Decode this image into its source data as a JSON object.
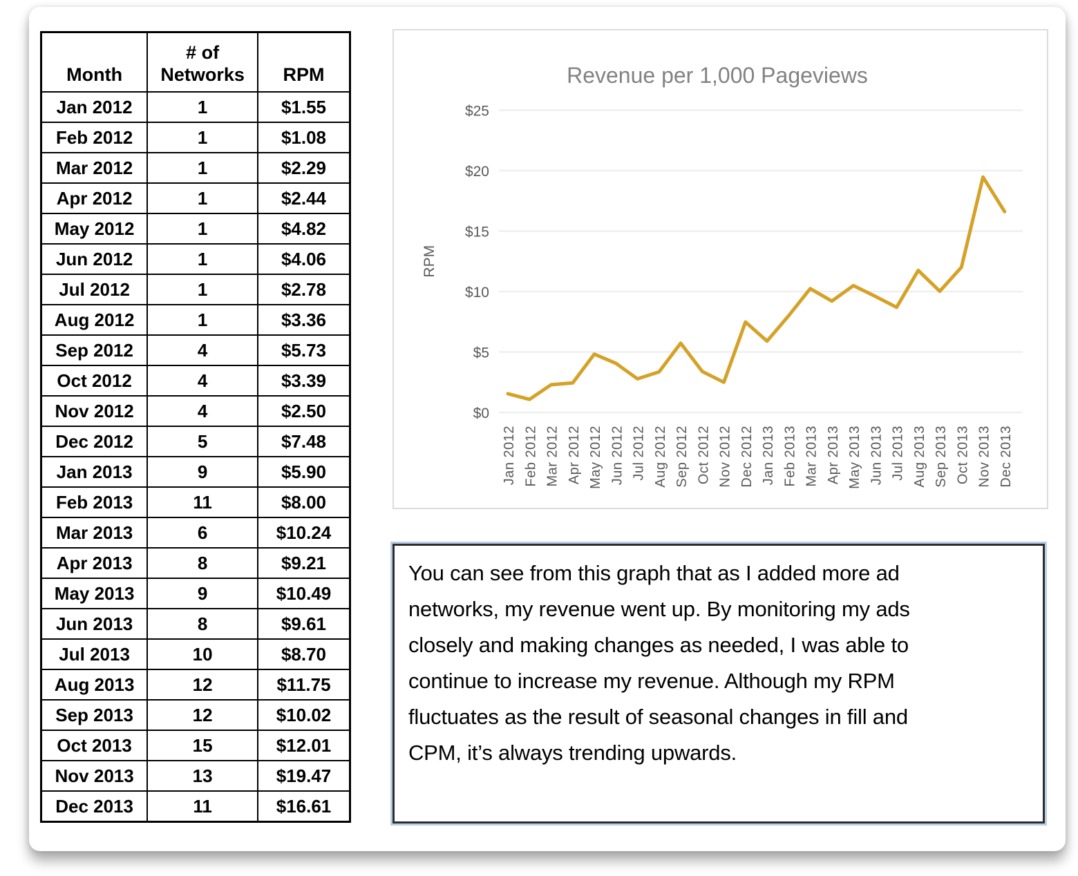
{
  "table": {
    "headers": {
      "month": "Month",
      "networks": "# of Networks",
      "rpm": "RPM"
    },
    "rows": [
      [
        "Jan 2012",
        "1",
        "$1.55"
      ],
      [
        "Feb 2012",
        "1",
        "$1.08"
      ],
      [
        "Mar 2012",
        "1",
        "$2.29"
      ],
      [
        "Apr 2012",
        "1",
        "$2.44"
      ],
      [
        "May 2012",
        "1",
        "$4.82"
      ],
      [
        "Jun 2012",
        "1",
        "$4.06"
      ],
      [
        "Jul 2012",
        "1",
        "$2.78"
      ],
      [
        "Aug 2012",
        "1",
        "$3.36"
      ],
      [
        "Sep 2012",
        "4",
        "$5.73"
      ],
      [
        "Oct 2012",
        "4",
        "$3.39"
      ],
      [
        "Nov 2012",
        "4",
        "$2.50"
      ],
      [
        "Dec 2012",
        "5",
        "$7.48"
      ],
      [
        "Jan 2013",
        "9",
        "$5.90"
      ],
      [
        "Feb 2013",
        "11",
        "$8.00"
      ],
      [
        "Mar 2013",
        "6",
        "$10.24"
      ],
      [
        "Apr 2013",
        "8",
        "$9.21"
      ],
      [
        "May 2013",
        "9",
        "$10.49"
      ],
      [
        "Jun 2013",
        "8",
        "$9.61"
      ],
      [
        "Jul 2013",
        "10",
        "$8.70"
      ],
      [
        "Aug 2013",
        "12",
        "$11.75"
      ],
      [
        "Sep 2013",
        "12",
        "$10.02"
      ],
      [
        "Oct 2013",
        "15",
        "$12.01"
      ],
      [
        "Nov 2013",
        "13",
        "$19.47"
      ],
      [
        "Dec 2013",
        "11",
        "$16.61"
      ]
    ]
  },
  "chart_data": {
    "type": "line",
    "title": "Revenue per 1,000 Pageviews",
    "xlabel": "",
    "ylabel": "RPM",
    "categories": [
      "Jan 2012",
      "Feb 2012",
      "Mar 2012",
      "Apr 2012",
      "May 2012",
      "Jun 2012",
      "Jul 2012",
      "Aug 2012",
      "Sep 2012",
      "Oct 2012",
      "Nov 2012",
      "Dec 2012",
      "Jan 2013",
      "Feb 2013",
      "Mar 2013",
      "Apr 2013",
      "May 2013",
      "Jun 2013",
      "Jul 2013",
      "Aug 2013",
      "Sep 2013",
      "Oct 2013",
      "Nov 2013",
      "Dec 2013"
    ],
    "values": [
      1.55,
      1.08,
      2.29,
      2.44,
      4.82,
      4.06,
      2.78,
      3.36,
      5.73,
      3.39,
      2.5,
      7.48,
      5.9,
      8.0,
      10.24,
      9.21,
      10.49,
      9.61,
      8.7,
      11.75,
      10.02,
      12.01,
      19.47,
      16.61
    ],
    "ylim": [
      0,
      25
    ],
    "ytick_step": 5,
    "ytick_labels": [
      "$0",
      "$5",
      "$10",
      "$15",
      "$20",
      "$25"
    ],
    "grid": true,
    "legend": "none",
    "colors": {
      "line": "#d5a228",
      "gridline": "#efefef",
      "title_text": "#828282",
      "axis_text": "#595959"
    }
  },
  "note": {
    "lines": [
      "You can see from this graph that as I added more ad",
      "networks, my revenue went up. By monitoring my ads",
      "closely and making changes as needed, I was able to",
      "continue to increase my revenue. Although my RPM",
      "fluctuates as the result of seasonal changes in fill and",
      "CPM, it’s always trending upwards."
    ]
  }
}
